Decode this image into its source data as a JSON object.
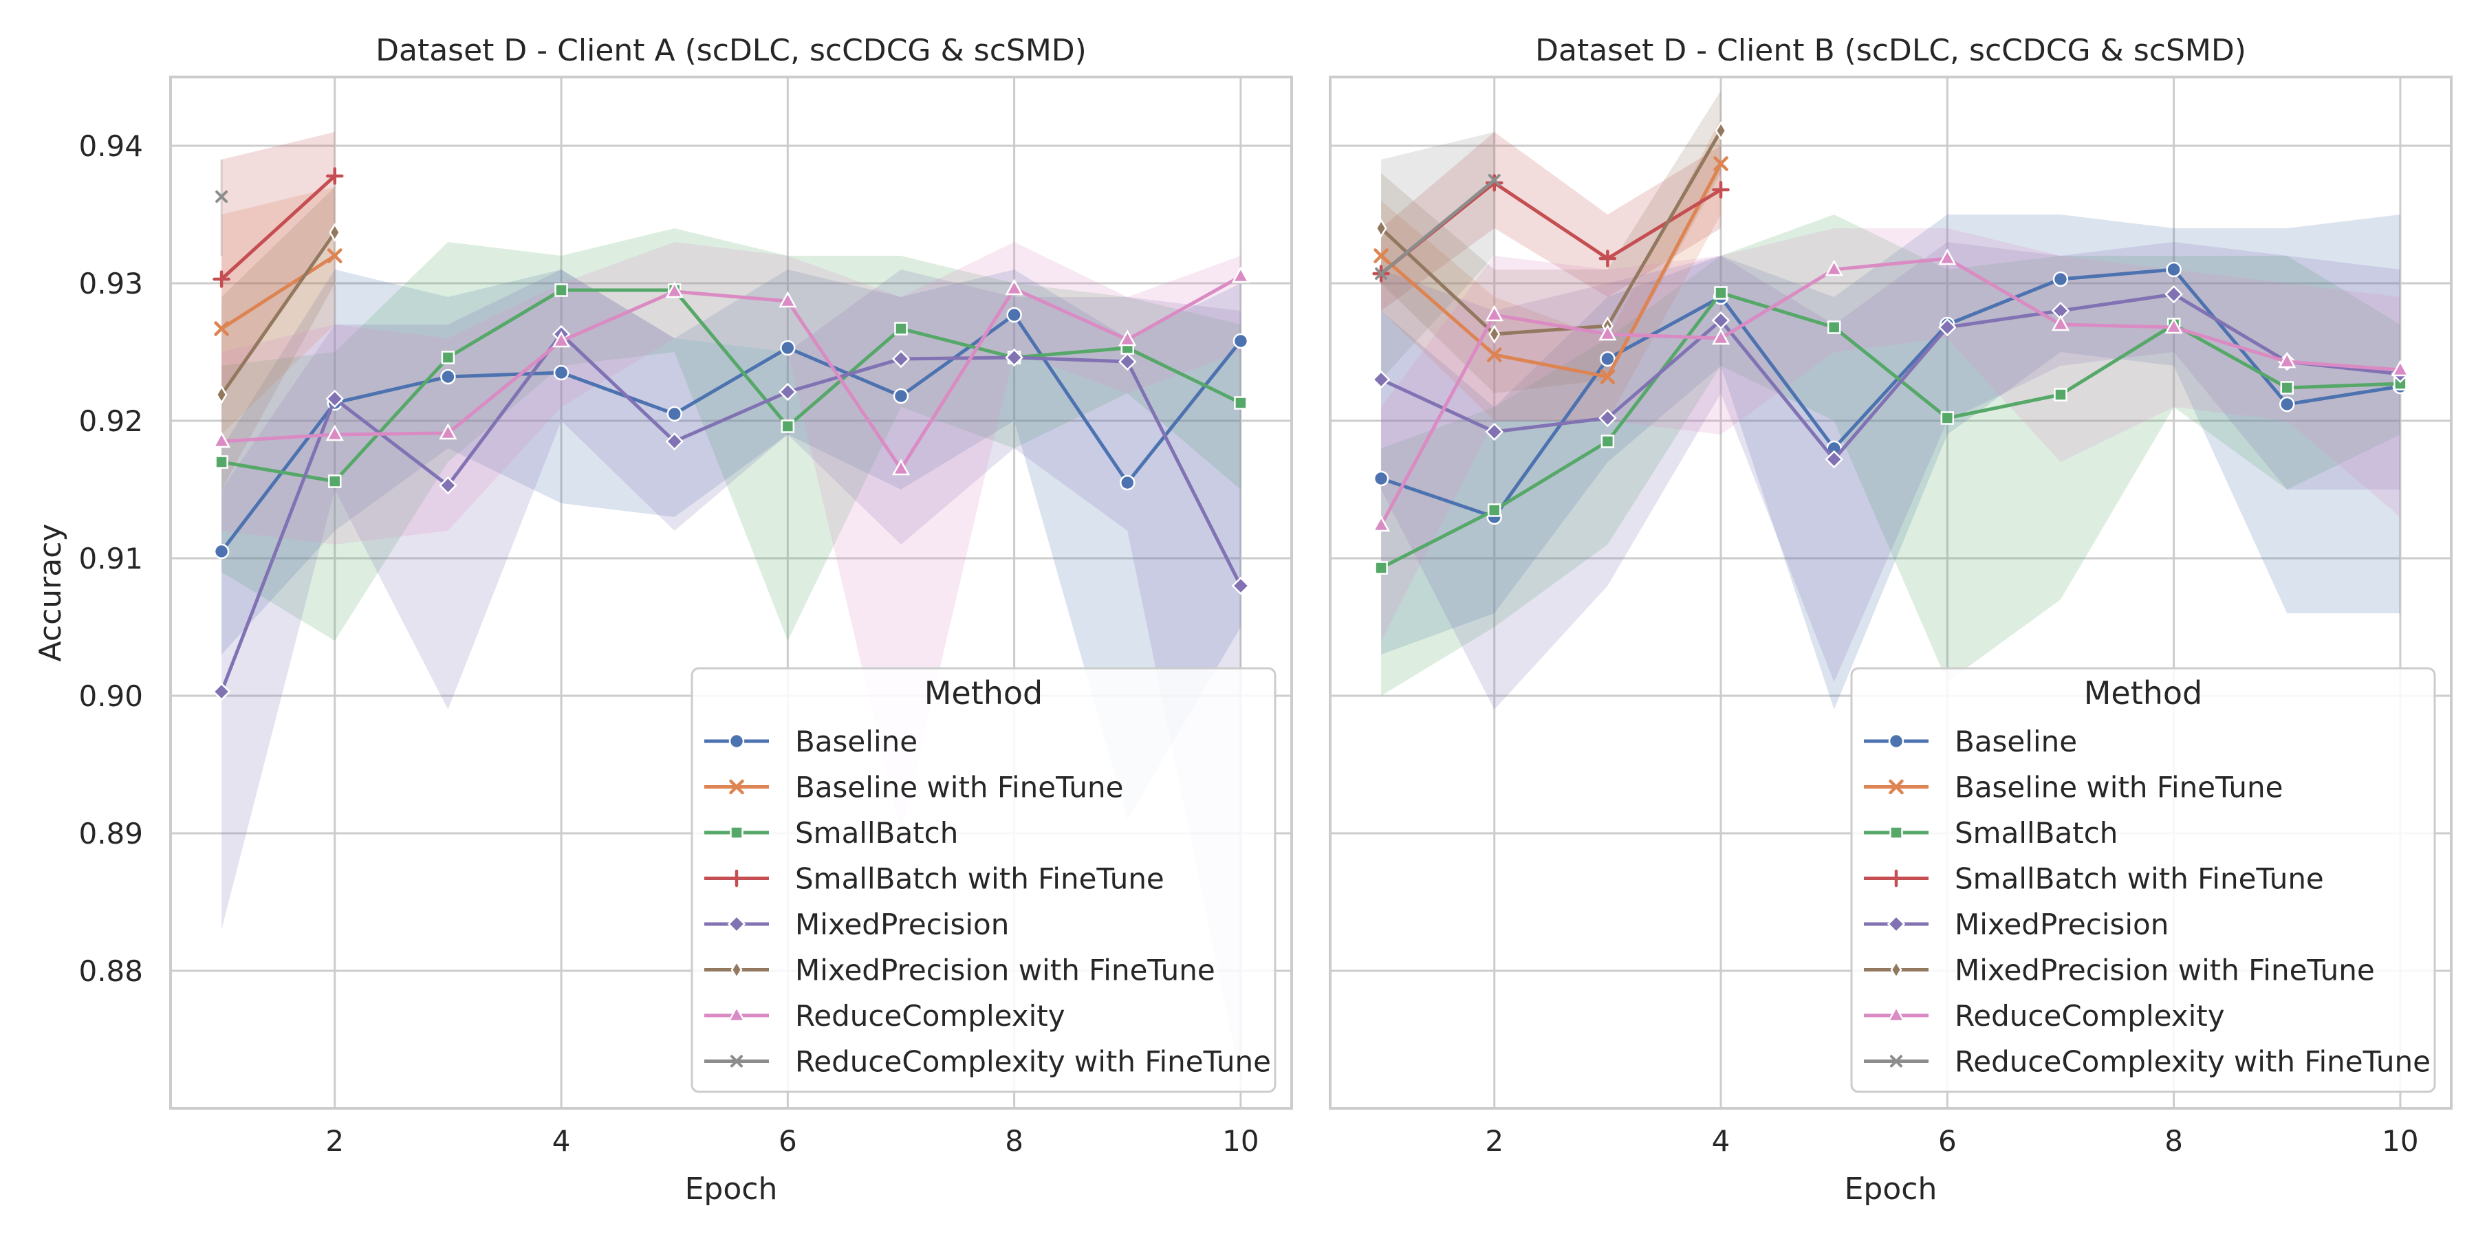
{
  "figure": {
    "ylabel": "Accuracy",
    "xlabel": "Epoch",
    "legend_title": "Method",
    "legend_position": "bottom-right",
    "grid": true,
    "ylim": [
      0.87,
      0.945
    ],
    "xlim": [
      0.55,
      10.45
    ],
    "yticks": [
      "0.88",
      "0.89",
      "0.90",
      "0.91",
      "0.92",
      "0.93",
      "0.94"
    ],
    "xticks": [
      "2",
      "4",
      "6",
      "8",
      "10"
    ]
  },
  "legend": [
    {
      "name": "Baseline",
      "color": "#4c72b0",
      "marker": "circle"
    },
    {
      "name": "Baseline with FineTune",
      "color": "#dd8452",
      "marker": "x"
    },
    {
      "name": "SmallBatch",
      "color": "#55a868",
      "marker": "square"
    },
    {
      "name": "SmallBatch with FineTune",
      "color": "#c44e52",
      "marker": "plus"
    },
    {
      "name": "MixedPrecision",
      "color": "#8172b3",
      "marker": "diamond"
    },
    {
      "name": "MixedPrecision with FineTune",
      "color": "#937860",
      "marker": "thin-diamond"
    },
    {
      "name": "ReduceComplexity",
      "color": "#da8bc3",
      "marker": "triangle"
    },
    {
      "name": "ReduceComplexity with FineTune",
      "color": "#8c8c8c",
      "marker": "x-small"
    }
  ],
  "chart_data": [
    {
      "type": "line",
      "title": "Dataset D - Client A (scDLC, scCDCG & scSMD)",
      "xlabel": "Epoch",
      "ylabel": "Accuracy",
      "ylim": [
        0.87,
        0.945
      ],
      "series": [
        {
          "name": "Baseline",
          "x": [
            1,
            2,
            3,
            4,
            5,
            6,
            7,
            8,
            9,
            10
          ],
          "values": [
            0.9105,
            0.9213,
            0.9232,
            0.9235,
            0.9205,
            0.9253,
            0.9218,
            0.9277,
            0.9155,
            0.9258
          ],
          "band_low": [
            0.903,
            0.912,
            0.918,
            0.914,
            0.913,
            0.919,
            0.915,
            0.92,
            0.891,
            0.905
          ],
          "band_high": [
            0.918,
            0.931,
            0.929,
            0.931,
            0.926,
            0.931,
            0.929,
            0.931,
            0.926,
            0.93
          ]
        },
        {
          "name": "Baseline with FineTune",
          "x": [
            1,
            2
          ],
          "values": [
            0.9267,
            0.932
          ],
          "band_low": [
            0.919,
            0.927
          ],
          "band_high": [
            0.935,
            0.937
          ]
        },
        {
          "name": "SmallBatch",
          "x": [
            1,
            2,
            3,
            4,
            5,
            6,
            7,
            8,
            9,
            10
          ],
          "values": [
            0.917,
            0.9156,
            0.9246,
            0.9295,
            0.9295,
            0.9196,
            0.9267,
            0.9246,
            0.9253,
            0.9213
          ],
          "band_low": [
            0.909,
            0.904,
            0.917,
            0.924,
            0.925,
            0.904,
            0.921,
            0.918,
            0.922,
            0.915
          ],
          "band_high": [
            0.924,
            0.925,
            0.933,
            0.932,
            0.934,
            0.932,
            0.932,
            0.93,
            0.929,
            0.927
          ]
        },
        {
          "name": "SmallBatch with FineTune",
          "x": [
            1,
            2
          ],
          "values": [
            0.9303,
            0.9378
          ],
          "band_low": [
            0.922,
            0.934
          ],
          "band_high": [
            0.939,
            0.941
          ]
        },
        {
          "name": "MixedPrecision",
          "x": [
            1,
            2,
            3,
            4,
            5,
            6,
            7,
            8,
            9,
            10
          ],
          "values": [
            0.9003,
            0.9216,
            0.9153,
            0.9263,
            0.9185,
            0.9221,
            0.9245,
            0.9246,
            0.9243,
            0.908
          ],
          "band_low": [
            0.883,
            0.915,
            0.899,
            0.92,
            0.912,
            0.919,
            0.911,
            0.918,
            0.912,
            0.872
          ],
          "band_high": [
            0.915,
            0.927,
            0.927,
            0.931,
            0.926,
            0.925,
            0.931,
            0.929,
            0.929,
            0.928
          ]
        },
        {
          "name": "MixedPrecision with FineTune",
          "x": [
            1,
            2
          ],
          "values": [
            0.9219,
            0.9337
          ],
          "band_low": [
            0.915,
            0.93
          ],
          "band_high": [
            0.929,
            0.937
          ]
        },
        {
          "name": "ReduceComplexity",
          "x": [
            1,
            2,
            3,
            4,
            5,
            6,
            7,
            8,
            9,
            10
          ],
          "values": [
            0.9185,
            0.919,
            0.9191,
            0.9258,
            0.9294,
            0.9287,
            0.9165,
            0.9296,
            0.9259,
            0.9305
          ],
          "band_low": [
            0.912,
            0.911,
            0.912,
            0.921,
            0.926,
            0.925,
            0.89,
            0.925,
            0.922,
            0.925
          ],
          "band_high": [
            0.925,
            0.927,
            0.926,
            0.93,
            0.933,
            0.932,
            0.929,
            0.933,
            0.929,
            0.932
          ]
        },
        {
          "name": "ReduceComplexity with FineTune",
          "x": [
            1
          ],
          "values": [
            0.9363
          ],
          "band_low": [
            0.932
          ],
          "band_high": [
            0.939
          ]
        }
      ]
    },
    {
      "type": "line",
      "title": "Dataset D - Client B (scDLC, scCDCG & scSMD)",
      "xlabel": "Epoch",
      "ylabel": "",
      "ylim": [
        0.87,
        0.945
      ],
      "series": [
        {
          "name": "Baseline",
          "x": [
            1,
            2,
            3,
            4,
            5,
            6,
            7,
            8,
            9,
            10
          ],
          "values": [
            0.9158,
            0.913,
            0.9245,
            0.929,
            0.918,
            0.927,
            0.9303,
            0.931,
            0.9212,
            0.9225
          ],
          "band_low": [
            0.903,
            0.906,
            0.917,
            0.924,
            0.899,
            0.919,
            0.925,
            0.924,
            0.906,
            0.906
          ],
          "band_high": [
            0.928,
            0.921,
            0.929,
            0.932,
            0.929,
            0.935,
            0.935,
            0.934,
            0.934,
            0.935
          ]
        },
        {
          "name": "Baseline with FineTune",
          "x": [
            1,
            2,
            3,
            4
          ],
          "values": [
            0.932,
            0.9248,
            0.9232,
            0.9387
          ],
          "band_low": [
            0.928,
            0.92,
            0.92,
            0.935
          ],
          "band_high": [
            0.936,
            0.929,
            0.926,
            0.942
          ]
        },
        {
          "name": "SmallBatch",
          "x": [
            1,
            2,
            3,
            4,
            5,
            6,
            7,
            8,
            9,
            10
          ],
          "values": [
            0.9093,
            0.9135,
            0.9185,
            0.9293,
            0.9268,
            0.9202,
            0.9219,
            0.927,
            0.9224,
            0.9227
          ],
          "band_low": [
            0.9,
            0.905,
            0.911,
            0.924,
            0.92,
            0.901,
            0.907,
            0.921,
            0.915,
            0.919
          ],
          "band_high": [
            0.918,
            0.921,
            0.926,
            0.932,
            0.935,
            0.931,
            0.932,
            0.932,
            0.932,
            0.927
          ]
        },
        {
          "name": "SmallBatch with FineTune",
          "x": [
            1,
            2,
            3,
            4
          ],
          "values": [
            0.9307,
            0.9373,
            0.9318,
            0.9368
          ],
          "band_low": [
            0.928,
            0.934,
            0.929,
            0.934
          ],
          "band_high": [
            0.934,
            0.941,
            0.935,
            0.94
          ]
        },
        {
          "name": "MixedPrecision",
          "x": [
            1,
            2,
            3,
            4,
            5,
            6,
            7,
            8,
            9,
            10
          ],
          "values": [
            0.923,
            0.9192,
            0.9202,
            0.9273,
            0.9172,
            0.9268,
            0.928,
            0.9292,
            0.9243,
            0.9234
          ],
          "band_low": [
            0.915,
            0.899,
            0.908,
            0.922,
            0.901,
            0.92,
            0.924,
            0.925,
            0.915,
            0.915
          ],
          "band_high": [
            0.931,
            0.928,
            0.93,
            0.932,
            0.927,
            0.933,
            0.932,
            0.933,
            0.932,
            0.931
          ]
        },
        {
          "name": "MixedPrecision with FineTune",
          "x": [
            1,
            2,
            3,
            4
          ],
          "values": [
            0.934,
            0.9263,
            0.9269,
            0.9411
          ],
          "band_low": [
            0.93,
            0.922,
            0.923,
            0.938
          ],
          "band_high": [
            0.938,
            0.931,
            0.931,
            0.944
          ]
        },
        {
          "name": "ReduceComplexity",
          "x": [
            1,
            2,
            3,
            4,
            5,
            6,
            7,
            8,
            9,
            10
          ],
          "values": [
            0.9124,
            0.9277,
            0.9263,
            0.926,
            0.931,
            0.9318,
            0.927,
            0.9268,
            0.9243,
            0.9237
          ],
          "band_low": [
            0.904,
            0.92,
            0.92,
            0.919,
            0.925,
            0.926,
            0.917,
            0.921,
            0.92,
            0.913
          ],
          "band_high": [
            0.921,
            0.932,
            0.931,
            0.932,
            0.934,
            0.934,
            0.932,
            0.931,
            0.93,
            0.929
          ]
        },
        {
          "name": "ReduceComplexity with FineTune",
          "x": [
            1,
            2
          ],
          "values": [
            0.9307,
            0.9375
          ],
          "band_low": [
            0.923,
            0.932
          ],
          "band_high": [
            0.939,
            0.941
          ]
        }
      ]
    }
  ]
}
